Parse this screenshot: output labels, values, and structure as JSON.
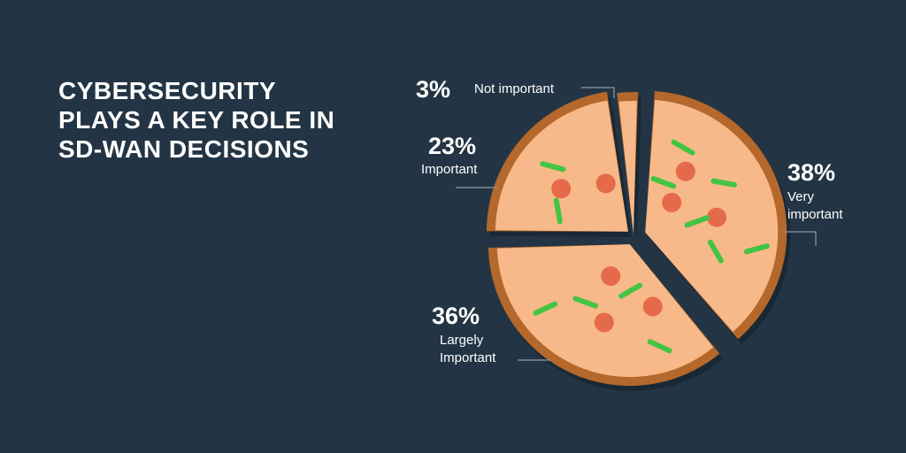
{
  "title_lines": [
    "CYBERSECURITY",
    "PLAYS A KEY ROLE IN",
    "SD-WAN DECISIONS"
  ],
  "colors": {
    "background": "#233544",
    "crust": "#b4682b",
    "dough": "#f7b989",
    "pepperoni": "#e56a4a",
    "herb": "#43c443"
  },
  "chart_data": {
    "type": "pie",
    "title": "",
    "slices": [
      {
        "value": 38,
        "percent_label": "38%",
        "label_lines": [
          "Very",
          "important"
        ]
      },
      {
        "value": 36,
        "percent_label": "36%",
        "label_lines": [
          "Largely",
          "Important"
        ]
      },
      {
        "value": 23,
        "percent_label": "23%",
        "label_lines": [
          "Important"
        ]
      },
      {
        "value": 3,
        "percent_label": "3%",
        "label_lines": [
          "Not important"
        ]
      }
    ]
  }
}
